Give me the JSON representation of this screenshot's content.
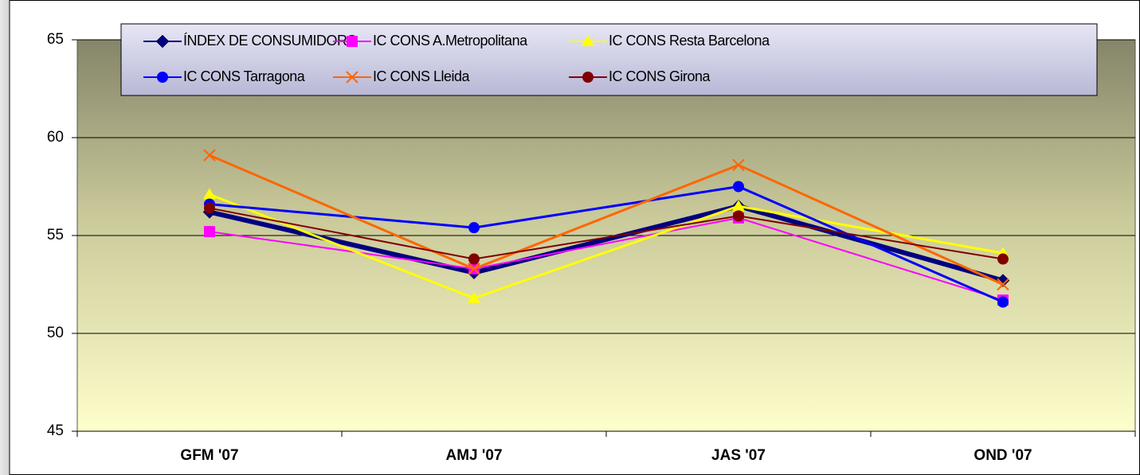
{
  "chart_data": {
    "type": "line",
    "categories": [
      "GFM '07",
      "AMJ '07",
      "JAS '07",
      "OND '07"
    ],
    "series": [
      {
        "name": "ÍNDEX DE CONSUMIDORS",
        "color": "#000080",
        "marker": "diamond",
        "width": 6,
        "values": [
          56.2,
          53.1,
          56.5,
          52.7
        ]
      },
      {
        "name": "IC CONS A.Metropolitana",
        "color": "#ff00ff",
        "marker": "square",
        "width": 2,
        "values": [
          55.2,
          53.3,
          55.9,
          51.7
        ]
      },
      {
        "name": "IC CONS Resta Barcelona",
        "color": "#ffff00",
        "marker": "triangle",
        "width": 3,
        "values": [
          57.1,
          51.8,
          56.5,
          54.1
        ]
      },
      {
        "name": "IC CONS Tarragona",
        "color": "#0000ff",
        "marker": "circle",
        "width": 3,
        "values": [
          56.6,
          55.4,
          57.5,
          51.6
        ]
      },
      {
        "name": "IC CONS Lleida",
        "color": "#ff6600",
        "marker": "x",
        "width": 3,
        "values": [
          59.1,
          53.3,
          58.6,
          52.5
        ]
      },
      {
        "name": "IC CONS Girona",
        "color": "#800000",
        "marker": "circle",
        "width": 2,
        "values": [
          56.4,
          53.8,
          56.0,
          53.8
        ]
      }
    ],
    "ylim": [
      45,
      65
    ],
    "yticks": [
      45,
      50,
      55,
      60,
      65
    ],
    "grid": true
  }
}
